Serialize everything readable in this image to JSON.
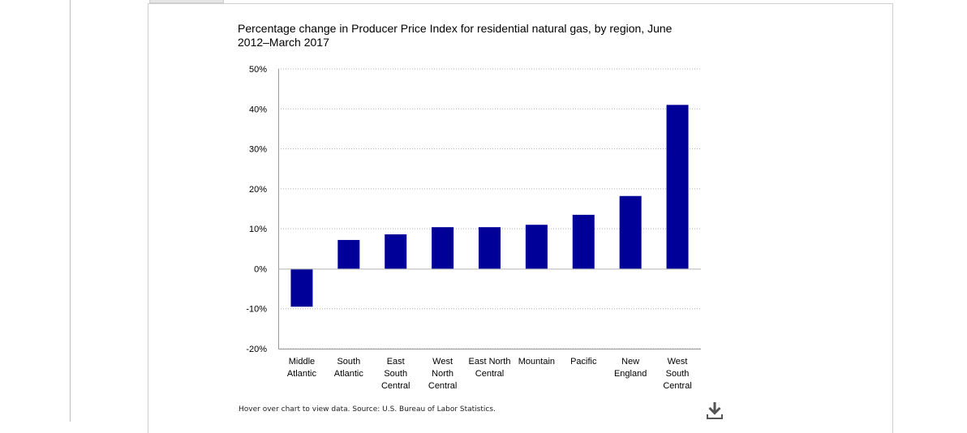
{
  "chart_data": {
    "type": "bar",
    "title": "Percentage change in Producer Price Index for residential natural gas, by region, June 2012–March 2017",
    "categories": [
      [
        "Middle",
        "Atlantic"
      ],
      [
        "South",
        "Atlantic"
      ],
      [
        "East",
        "South",
        "Central"
      ],
      [
        "West",
        "North",
        "Central"
      ],
      [
        "East North",
        "Central"
      ],
      [
        "Mountain"
      ],
      [
        "Pacific"
      ],
      [
        "New",
        "England"
      ],
      [
        "West",
        "South",
        "Central"
      ]
    ],
    "values": [
      -9.5,
      7.2,
      8.6,
      10.4,
      10.4,
      11.0,
      13.5,
      18.2,
      41.0
    ],
    "ylim": [
      -20,
      50
    ],
    "yticks": [
      -20,
      -10,
      0,
      10,
      20,
      30,
      40,
      50
    ],
    "ytick_labels": [
      "-20%",
      "-10%",
      "0%",
      "10%",
      "20%",
      "30%",
      "40%",
      "50%"
    ],
    "xlabel": "",
    "ylabel": "",
    "bar_color": "#000099",
    "grid": true
  },
  "footnote": "Hover over chart to view data. Source: U.S. Bureau of Labor Statistics.",
  "download_icon": "download-icon"
}
